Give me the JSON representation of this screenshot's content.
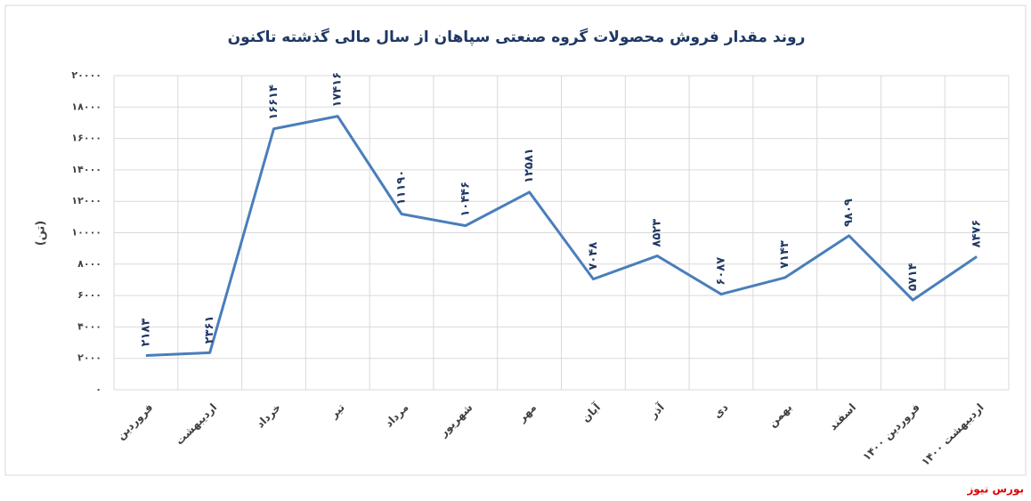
{
  "chart_data": {
    "type": "line",
    "title": "روند مقدار فروش محصولات گروه صنعتی سپاهان از سال مالی گذشته تاکنون",
    "y_label": "(تن)",
    "categories": [
      "فروردین",
      "اردیبهشت",
      "خرداد",
      "تیر",
      "مرداد",
      "شهریور",
      "مهر",
      "آبان",
      "آذر",
      "دی",
      "بهمن",
      "اسفند",
      "فروردین ۱۴۰۰",
      "اردیبهشت ۱۴۰۰"
    ],
    "values": [
      2183,
      2361,
      16614,
      17416,
      11190,
      10446,
      12581,
      7048,
      8523,
      6087,
      7143,
      9809,
      5714,
      8476
    ],
    "value_labels": [
      "۲۱۸۳",
      "۲۳۶۱",
      "۱۶۶۱۴",
      "۱۷۴۱۶",
      "۱۱۱۹۰",
      "۱۰۴۴۶",
      "۱۲۵۸۱",
      "۷۰۴۸",
      "۸۵۲۳",
      "۶۰۸۷",
      "۷۱۴۳",
      "۹۸۰۹",
      "۵۷۱۴",
      "۸۴۷۶"
    ],
    "color": "#4a7ebb",
    "ylim": [
      0,
      20000
    ],
    "yticks": [
      {
        "value": 0,
        "label": "۰"
      },
      {
        "value": 2000,
        "label": "۲۰۰۰"
      },
      {
        "value": 4000,
        "label": "۴۰۰۰"
      },
      {
        "value": 6000,
        "label": "۶۰۰۰"
      },
      {
        "value": 8000,
        "label": "۸۰۰۰"
      },
      {
        "value": 10000,
        "label": "۱۰۰۰۰"
      },
      {
        "value": 12000,
        "label": "۱۲۰۰۰"
      },
      {
        "value": 14000,
        "label": "۱۴۰۰۰"
      },
      {
        "value": 16000,
        "label": "۱۶۰۰۰"
      },
      {
        "value": 18000,
        "label": "۱۸۰۰۰"
      },
      {
        "value": 20000,
        "label": "۲۰۰۰۰"
      }
    ],
    "grid": true,
    "source": "بورس نیوز"
  }
}
